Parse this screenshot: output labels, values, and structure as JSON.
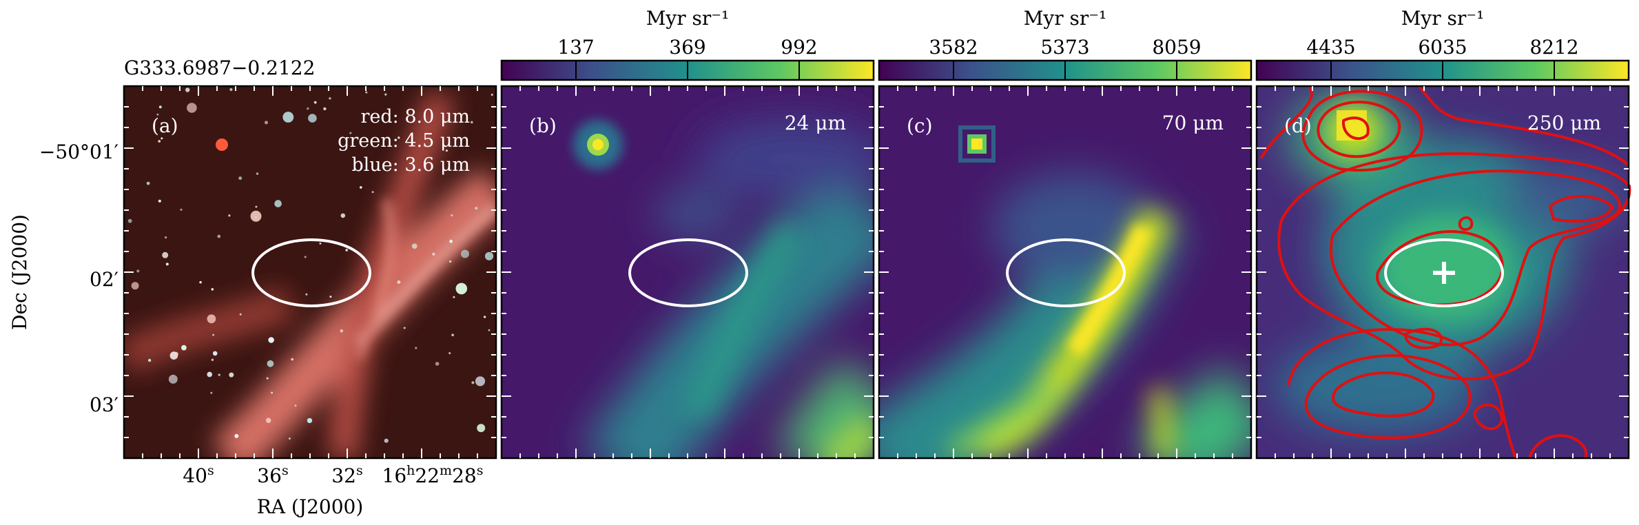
{
  "figure": {
    "source_name": "G333.6987−0.2122",
    "y_axis_label": "Dec (J2000)",
    "x_axis_label": "RA (J2000)",
    "y_ticks": [
      {
        "main": "−50°01′"
      },
      {
        "main": "02′"
      },
      {
        "main": "03′"
      }
    ],
    "x_ticks": [
      {
        "main": "40",
        "sup": "s"
      },
      {
        "main": "36",
        "sup": "s"
      },
      {
        "main": "32",
        "sup": "s"
      },
      {
        "parts": [
          [
            "16",
            "h"
          ],
          [
            "22",
            "m"
          ],
          [
            "28",
            "s"
          ]
        ]
      }
    ]
  },
  "panels": [
    {
      "id": "a",
      "tag": "(a)",
      "legend": [
        "red: 8.0 μm",
        "green: 4.5 μm",
        "blue: 3.6 μm"
      ],
      "colors": {
        "bg": "#3b1512",
        "filament": "#e67a6e"
      }
    },
    {
      "id": "b",
      "tag": "(b)",
      "wavelength": "24 μm",
      "colorbar": {
        "unit": "Myr sr⁻¹",
        "ticks": [
          "137",
          "369",
          "992"
        ]
      }
    },
    {
      "id": "c",
      "tag": "(c)",
      "wavelength": "70 μm",
      "colorbar": {
        "unit": "Myr sr⁻¹",
        "ticks": [
          "3582",
          "5373",
          "8059"
        ]
      }
    },
    {
      "id": "d",
      "tag": "(d)",
      "wavelength": "250 μm",
      "colorbar": {
        "unit": "Myr sr⁻¹",
        "ticks": [
          "4435",
          "6035",
          "8212"
        ]
      },
      "contour_color": "#e01010"
    }
  ],
  "viridis": [
    "#440154",
    "#3b528b",
    "#21918c",
    "#5ec962",
    "#fde725"
  ]
}
